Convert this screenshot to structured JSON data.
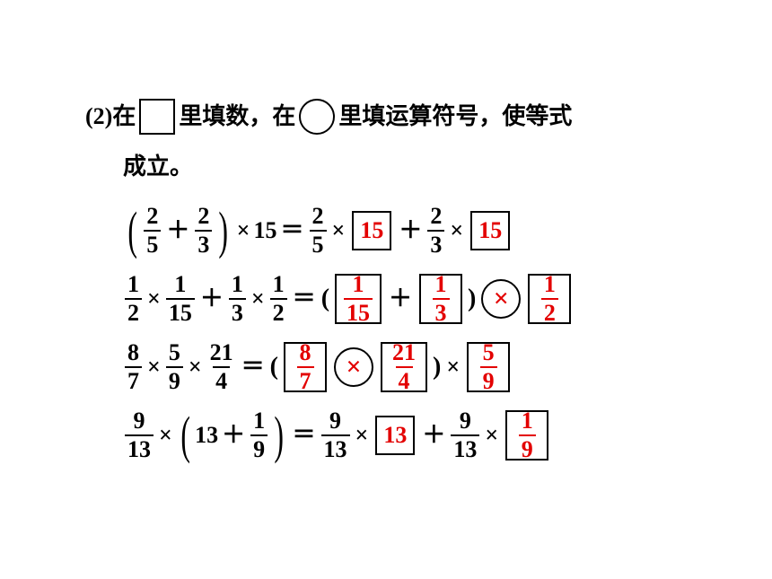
{
  "prompt": {
    "label": "(2)",
    "text_a": "在",
    "text_b": "里填数，在",
    "text_c": "里填运算符号，使等式",
    "text_d": "成立。"
  },
  "eq1": {
    "f1_num": "2",
    "f1_den": "5",
    "f2_num": "2",
    "f2_den": "3",
    "mult_val": "15",
    "f3_num": "2",
    "f3_den": "5",
    "ans1": "15",
    "f4_num": "2",
    "f4_den": "3",
    "ans2": "15"
  },
  "eq2": {
    "f1_num": "1",
    "f1_den": "2",
    "f2_num": "1",
    "f2_den": "15",
    "f3_num": "1",
    "f3_den": "3",
    "f4_num": "1",
    "f4_den": "2",
    "ans1_num": "1",
    "ans1_den": "15",
    "ans2_num": "1",
    "ans2_den": "3",
    "op": "×",
    "ans3_num": "1",
    "ans3_den": "2"
  },
  "eq3": {
    "f1_num": "8",
    "f1_den": "7",
    "f2_num": "5",
    "f2_den": "9",
    "f3_num": "21",
    "f3_den": "4",
    "ans1_num": "8",
    "ans1_den": "7",
    "op": "×",
    "ans2_num": "21",
    "ans2_den": "4",
    "ans3_num": "5",
    "ans3_den": "9"
  },
  "eq4": {
    "f1_num": "9",
    "f1_den": "13",
    "inner_int": "13",
    "f2_num": "1",
    "f2_den": "9",
    "f3_num": "9",
    "f3_den": "13",
    "ans1": "13",
    "f4_num": "9",
    "f4_den": "13",
    "ans2_num": "1",
    "ans2_den": "9"
  },
  "symbols": {
    "plus": "＋",
    "times": "×",
    "eq": "＝",
    "lp": "(",
    "rp": ")"
  }
}
